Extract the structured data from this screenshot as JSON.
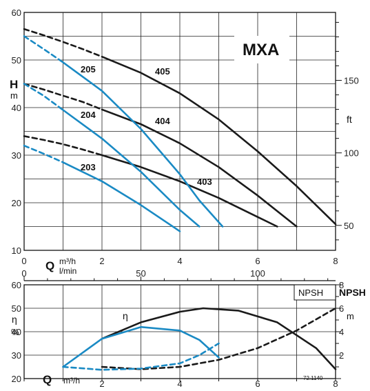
{
  "chart_data": [
    {
      "type": "line",
      "title": "MXA",
      "ylabel": "H",
      "yunit": "m",
      "ylim": [
        10,
        60
      ],
      "yticks": [
        "10",
        "20",
        "30",
        "40",
        "50",
        "60"
      ],
      "y2label": "ft",
      "y2ticks": [
        "50",
        "100",
        "150"
      ],
      "xlabel": "Q",
      "xunit_top": "m³/h",
      "xunit_bottom": "l/min",
      "xlim": [
        0,
        8
      ],
      "xticks": [
        "0",
        "2",
        "4",
        "6",
        "8"
      ],
      "x2lim": [
        0,
        133.33
      ],
      "x2ticks": [
        "0",
        "50",
        "100"
      ],
      "grid": true,
      "series": [
        {
          "name": "405",
          "color": "#1a1a1a",
          "dashed": {
            "x": [
              0,
              0.5,
              1,
              1.5,
              2
            ],
            "y": [
              56.5,
              55.2,
              53.8,
              52.3,
              50.7
            ]
          },
          "solid": {
            "x": [
              2,
              3,
              4,
              5,
              6,
              7,
              8
            ],
            "y": [
              50.7,
              47.3,
              43,
              37.5,
              30.8,
              23.5,
              15.5
            ]
          }
        },
        {
          "name": "404",
          "color": "#1a1a1a",
          "dashed": {
            "x": [
              0,
              0.5,
              1,
              1.5,
              2
            ],
            "y": [
              45,
              43.8,
              42.5,
              41.2,
              39.6
            ]
          },
          "solid": {
            "x": [
              2,
              3,
              4,
              5,
              6,
              7
            ],
            "y": [
              39.6,
              36.5,
              32.5,
              27.5,
              21.5,
              15
            ]
          }
        },
        {
          "name": "403",
          "color": "#1a1a1a",
          "dashed": {
            "x": [
              0,
              0.5,
              1,
              1.5,
              2
            ],
            "y": [
              34,
              33.2,
              32.3,
              31.2,
              30
            ]
          },
          "solid": {
            "x": [
              2,
              3,
              4,
              5,
              6,
              6.5
            ],
            "y": [
              30,
              27.5,
              24.5,
              21,
              17,
              15
            ]
          }
        },
        {
          "name": "205",
          "color": "#1a8ac4",
          "dashed": {
            "x": [
              0,
              0.5,
              1
            ],
            "y": [
              55,
              52.3,
              49.5
            ]
          },
          "solid": {
            "x": [
              1,
              2,
              3,
              4,
              4.5,
              5.1
            ],
            "y": [
              49.5,
              43.5,
              35.5,
              26,
              20.5,
              15
            ]
          }
        },
        {
          "name": "204",
          "color": "#1a8ac4",
          "dashed": {
            "x": [
              0,
              0.5,
              1
            ],
            "y": [
              45,
              42.5,
              39.5
            ]
          },
          "solid": {
            "x": [
              1,
              2,
              3,
              4,
              4.5
            ],
            "y": [
              39.5,
              33.5,
              26.5,
              18.5,
              15
            ]
          }
        },
        {
          "name": "203",
          "color": "#1a8ac4",
          "dashed": {
            "x": [
              0,
              0.5,
              1
            ],
            "y": [
              32,
              30.3,
              28.5
            ]
          },
          "solid": {
            "x": [
              1,
              2,
              3,
              4
            ],
            "y": [
              28.5,
              24.5,
              19.5,
              14
            ]
          }
        }
      ]
    },
    {
      "type": "line",
      "ylabel": "η",
      "yunit": "%",
      "ylim": [
        20,
        60
      ],
      "yticks": [
        "20",
        "30",
        "40",
        "50",
        "60"
      ],
      "y2label": "NPSH",
      "y2unit": "m",
      "y2lim": [
        0,
        8
      ],
      "y2ticks": [
        "2",
        "4",
        "6",
        "8"
      ],
      "xlabel": "Q",
      "xunit": "m³/h",
      "xlim": [
        0,
        8
      ],
      "xticks": [
        "2",
        "4",
        "6",
        "8"
      ],
      "panel_label": "NPSH",
      "curve_label": "η",
      "code": "72.1140",
      "grid": true,
      "series": [
        {
          "name": "efficiency-black",
          "axis": "left",
          "color": "#1a1a1a",
          "x": [
            2,
            3,
            4,
            4.6,
            5.5,
            6.5,
            7.5,
            8
          ],
          "y": [
            37,
            44,
            48.5,
            50,
            49,
            44,
            33,
            24
          ]
        },
        {
          "name": "efficiency-blue",
          "axis": "left",
          "color": "#1a8ac4",
          "x": [
            1,
            2,
            3,
            4,
            4.5,
            5
          ],
          "y": [
            25,
            37,
            42,
            40.5,
            36.5,
            29
          ]
        },
        {
          "name": "npsh-black",
          "axis": "right",
          "color": "#1a1a1a",
          "x": [
            2,
            3,
            4,
            5,
            6,
            7,
            8
          ],
          "y": [
            1,
            0.8,
            1,
            1.6,
            2.6,
            4.1,
            6
          ]
        },
        {
          "name": "npsh-blue",
          "axis": "right",
          "color": "#1a8ac4",
          "x": [
            1,
            2,
            3,
            4,
            4.5,
            5
          ],
          "y": [
            1,
            0.75,
            0.85,
            1.3,
            2,
            3
          ]
        }
      ]
    }
  ]
}
